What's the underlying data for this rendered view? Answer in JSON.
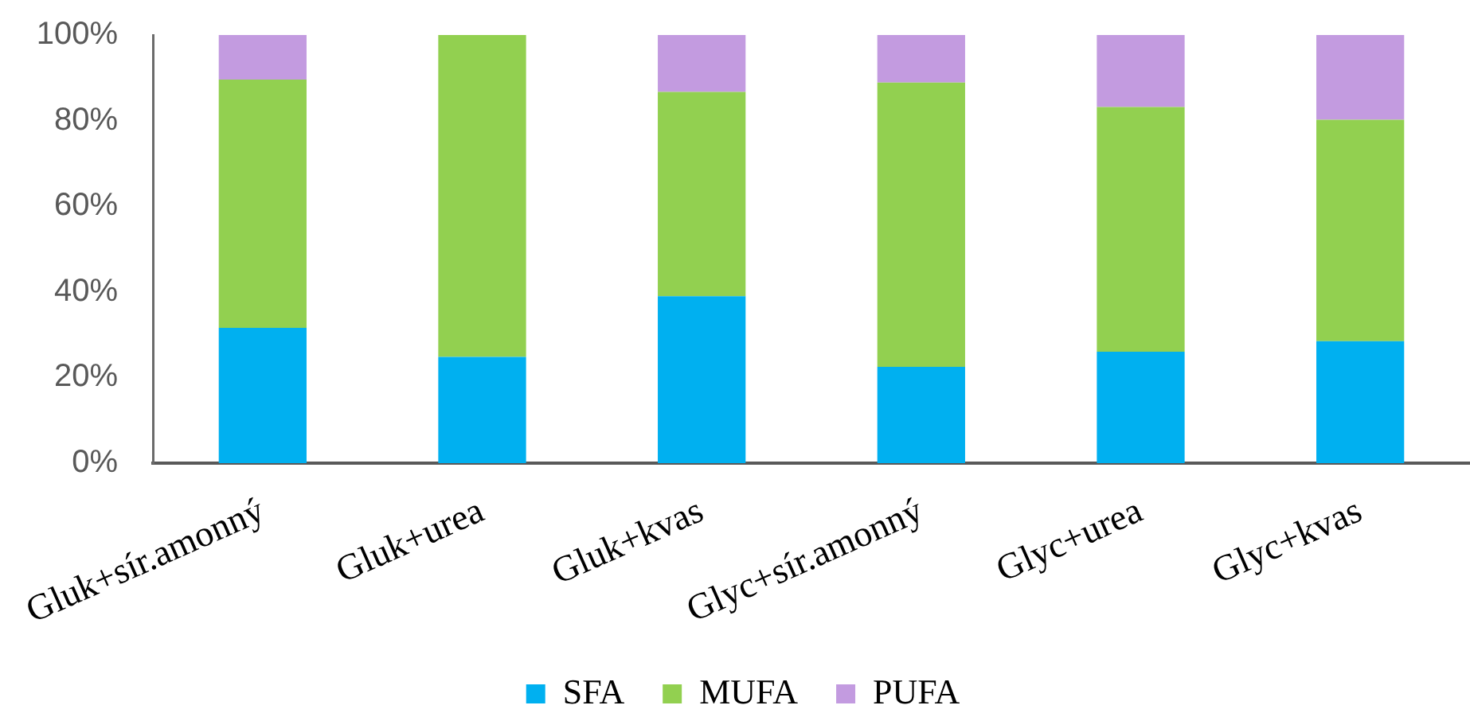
{
  "chart_data": {
    "type": "bar",
    "stacked": true,
    "categories": [
      "Gluk+sír.amonný",
      "Gluk+urea",
      "Gluk+kvas",
      "Glyc+sír.amonný",
      "Glyc+urea",
      "Glyc+kvas"
    ],
    "series": [
      {
        "name": "SFA",
        "color": "#00b0f0",
        "values": [
          31.6,
          24.8,
          39.0,
          22.5,
          26.0,
          28.5
        ]
      },
      {
        "name": "MUFA",
        "color": "#92d050",
        "values": [
          58.0,
          75.2,
          47.7,
          66.4,
          57.2,
          51.7
        ]
      },
      {
        "name": "PUFA",
        "color": "#c39be0",
        "values": [
          10.4,
          0,
          13.3,
          11.1,
          16.8,
          19.8
        ]
      }
    ],
    "ylim": [
      0,
      100
    ],
    "yticks": [
      {
        "value": 0,
        "label": "0%"
      },
      {
        "value": 20,
        "label": "20%"
      },
      {
        "value": 40,
        "label": "40%"
      },
      {
        "value": 60,
        "label": "60%"
      },
      {
        "value": 80,
        "label": "80%"
      },
      {
        "value": 100,
        "label": "100%"
      }
    ],
    "legend": "bottom"
  }
}
